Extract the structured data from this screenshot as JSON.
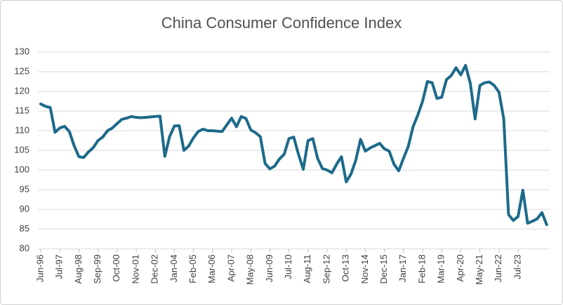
{
  "chart_data": {
    "type": "line",
    "title": "China Consumer Confidence Index",
    "categories": [
      "Jun-96",
      null,
      null,
      null,
      "Jul-97",
      null,
      null,
      null,
      "Aug-98",
      null,
      null,
      null,
      "Sep-99",
      null,
      null,
      null,
      "Oct-00",
      null,
      null,
      null,
      "Nov-01",
      null,
      null,
      null,
      "Dec-02",
      null,
      null,
      null,
      "Jan-04",
      null,
      null,
      null,
      "Feb-05",
      null,
      null,
      null,
      "Mar-06",
      null,
      null,
      null,
      "Apr-07",
      null,
      null,
      null,
      "May-08",
      null,
      null,
      null,
      "Jun-09",
      null,
      null,
      null,
      "Jul-10",
      null,
      null,
      null,
      "Aug-11",
      null,
      null,
      null,
      "Sep-12",
      null,
      null,
      null,
      "Oct-13",
      null,
      null,
      null,
      "Nov-14",
      null,
      null,
      null,
      "Dec-15",
      null,
      null,
      null,
      "Jan-17",
      null,
      null,
      null,
      "Feb-18",
      null,
      null,
      null,
      "Mar-19",
      null,
      null,
      null,
      "Apr-20",
      null,
      null,
      null,
      "May-21",
      null,
      null,
      null,
      "Jun-22",
      null,
      null,
      null,
      "Jul-23",
      null,
      null,
      null,
      null,
      null,
      null
    ],
    "values": [
      116.8,
      116.2,
      115.9,
      109.6,
      110.7,
      111.1,
      109.8,
      106.2,
      103.4,
      103.2,
      104.6,
      105.7,
      107.5,
      108.4,
      110,
      110.7,
      111.8,
      112.9,
      113.2,
      113.6,
      113.4,
      113.3,
      113.4,
      113.5,
      113.6,
      113.7,
      103.5,
      108.5,
      111.2,
      111.3,
      105,
      106.1,
      108.2,
      109.8,
      110.4,
      110,
      110,
      109.9,
      109.8,
      111.5,
      113.2,
      111,
      113.6,
      113.1,
      110.2,
      109.5,
      108.5,
      101.7,
      100.3,
      101,
      102.8,
      104,
      108,
      108.4,
      104,
      100.2,
      107.5,
      108,
      103,
      100.4,
      100,
      99.3,
      101.5,
      103.4,
      97,
      99,
      102.5,
      107.8,
      104.8,
      105.6,
      106.2,
      106.8,
      105.4,
      104.8,
      101.5,
      99.8,
      103,
      106,
      111,
      114,
      117.5,
      122.5,
      122.2,
      118.2,
      118.5,
      123,
      124,
      126,
      124.2,
      126.6,
      122,
      113,
      121.5,
      122.2,
      122.4,
      121.5,
      119.8,
      113,
      88.7,
      87.2,
      88.2,
      94.9,
      86.5,
      87,
      87.6,
      89.2,
      86.1
    ],
    "color": "#1d6a8a",
    "ylim": [
      80,
      130
    ],
    "yticks": [
      80,
      85,
      90,
      95,
      100,
      105,
      110,
      115,
      120,
      125,
      130
    ],
    "grid": true
  }
}
